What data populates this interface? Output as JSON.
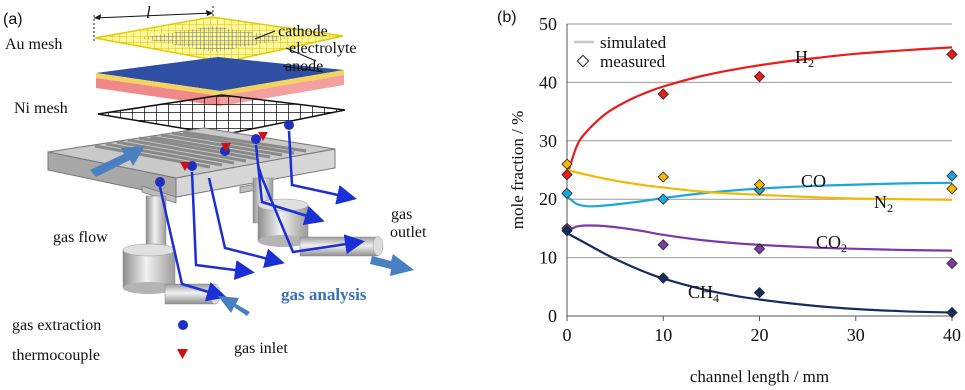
{
  "panel_a": {
    "label": "(a)",
    "length_symbol": "l",
    "labels": {
      "au_mesh": "Au mesh",
      "cathode": "cathode",
      "electrolyte": "electrolyte",
      "anode": "anode",
      "ni_mesh": "Ni mesh",
      "gas_flow": "gas flow",
      "gas_outlet_1": "gas",
      "gas_outlet_2": "outlet",
      "gas_analysis": "gas analysis",
      "gas_inlet": "gas inlet",
      "gas_extraction": "gas extraction",
      "thermocouple": "thermocouple"
    },
    "colors": {
      "au_mesh": "#f2e600",
      "electrolyte": "#2e4fa3",
      "anode": "#f4a0a0",
      "arrow": "#1a2fd6",
      "big_arrow": "#4a7fc1",
      "dot": "#1f2fbf",
      "triangle": "#d01010",
      "analysis_text": "#3b6fb6"
    }
  },
  "panel_b": {
    "label": "(b)",
    "legend": {
      "simulated": "simulated",
      "measured": "measured"
    },
    "series_labels": {
      "H2": {
        "main": "H",
        "sub": "2"
      },
      "CO": {
        "main": "CO",
        "sub": ""
      },
      "N2": {
        "main": "N",
        "sub": "2"
      },
      "CO2": {
        "main": "CO",
        "sub": "2"
      },
      "CH4": {
        "main": "CH",
        "sub": "4"
      }
    }
  },
  "chart_data": {
    "type": "line",
    "xlabel": "channel length / mm",
    "ylabel": "mole fraction / %",
    "xlim": [
      0,
      40
    ],
    "ylim": [
      0,
      50
    ],
    "xticks": [
      0,
      10,
      20,
      30,
      40
    ],
    "yticks": [
      0,
      10,
      20,
      30,
      40,
      50
    ],
    "grid": "horizontal",
    "legend_position": "top-left",
    "series": [
      {
        "name": "H2",
        "color": "#e81c1c",
        "measured": {
          "x": [
            0,
            10,
            20,
            40
          ],
          "y": [
            24.2,
            38.0,
            41.0,
            44.8
          ]
        },
        "simulated": {
          "x": [
            0,
            1,
            2,
            4,
            6,
            8,
            10,
            14,
            18,
            22,
            26,
            30,
            35,
            40
          ],
          "y": [
            24.0,
            29.0,
            31.5,
            34.6,
            36.6,
            38.1,
            39.3,
            41.1,
            42.4,
            43.4,
            44.2,
            44.9,
            45.5,
            46.0
          ]
        }
      },
      {
        "name": "CO",
        "color": "#1ea5dd",
        "measured": {
          "x": [
            0,
            10,
            20,
            40
          ],
          "y": [
            21.0,
            20.0,
            21.6,
            24.0
          ]
        },
        "simulated": {
          "x": [
            0,
            1,
            2,
            3,
            5,
            8,
            10,
            14,
            18,
            22,
            26,
            30,
            35,
            40
          ],
          "y": [
            20.5,
            19.2,
            18.8,
            18.8,
            19.1,
            19.7,
            20.2,
            21.0,
            21.6,
            22.0,
            22.3,
            22.5,
            22.7,
            22.8
          ]
        }
      },
      {
        "name": "N2",
        "color": "#f5b800",
        "measured": {
          "x": [
            0,
            10,
            20,
            40
          ],
          "y": [
            26.0,
            23.8,
            22.5,
            21.8
          ]
        },
        "simulated": {
          "x": [
            0,
            2,
            4,
            6,
            8,
            10,
            14,
            18,
            22,
            26,
            30,
            35,
            40
          ],
          "y": [
            25.0,
            24.2,
            23.5,
            22.9,
            22.4,
            22.0,
            21.3,
            20.9,
            20.6,
            20.3,
            20.1,
            20.0,
            19.9
          ]
        }
      },
      {
        "name": "CO2",
        "color": "#7a3aa8",
        "measured": {
          "x": [
            0,
            10,
            20,
            40
          ],
          "y": [
            15.0,
            12.2,
            11.5,
            9.0
          ]
        },
        "simulated": {
          "x": [
            0,
            1,
            2,
            4,
            6,
            8,
            10,
            14,
            18,
            22,
            26,
            30,
            35,
            40
          ],
          "y": [
            14.5,
            15.3,
            15.5,
            15.4,
            15.0,
            14.5,
            13.9,
            13.0,
            12.4,
            12.0,
            11.7,
            11.5,
            11.3,
            11.2
          ]
        }
      },
      {
        "name": "CH4",
        "color": "#132d63",
        "measured": {
          "x": [
            0,
            10,
            20,
            40
          ],
          "y": [
            14.6,
            6.5,
            4.0,
            0.6
          ]
        },
        "simulated": {
          "x": [
            0,
            2,
            4,
            6,
            8,
            10,
            14,
            18,
            22,
            26,
            30,
            35,
            40
          ],
          "y": [
            14.2,
            12.4,
            10.6,
            9.0,
            7.6,
            6.4,
            4.6,
            3.3,
            2.4,
            1.7,
            1.2,
            0.8,
            0.6
          ]
        }
      }
    ]
  }
}
